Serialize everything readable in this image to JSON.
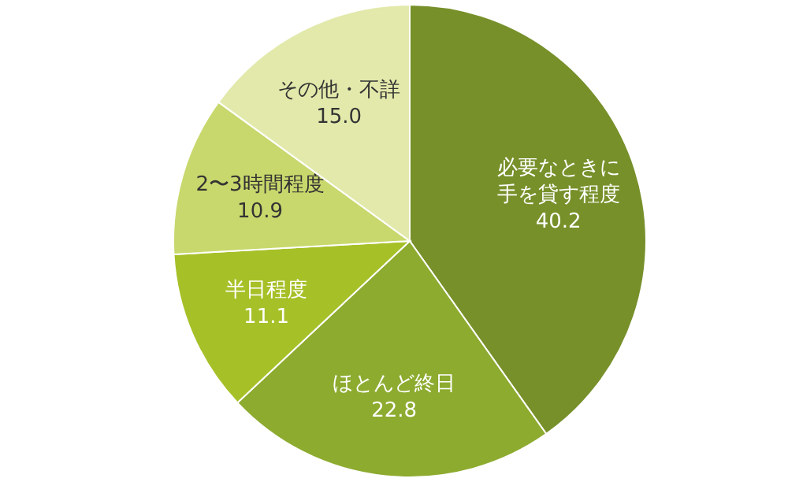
{
  "chart_data": {
    "type": "pie",
    "categories": [
      "必要なときに手を貸す程度",
      "ほとんど終日",
      "半日程度",
      "2〜3時間程度",
      "その他・不詳"
    ],
    "values": [
      40.2,
      22.8,
      11.1,
      10.9,
      15.0
    ],
    "value_labels": [
      "40.2",
      "22.8",
      "11.1",
      "10.9",
      "15.0"
    ],
    "colors": [
      "#77902a",
      "#8dab2f",
      "#a6c028",
      "#c8d86c",
      "#e2e9ab"
    ]
  }
}
